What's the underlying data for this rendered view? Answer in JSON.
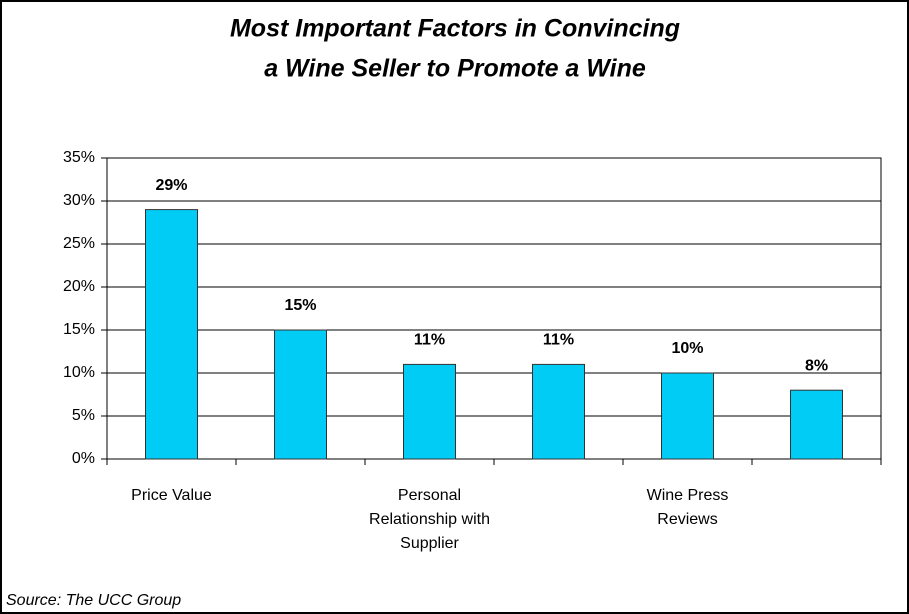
{
  "chart_data": {
    "type": "bar",
    "title": [
      "Most Important Factors in Convincing",
      "a Wine Seller to Promote a Wine"
    ],
    "categories": [
      "Price Value",
      null,
      "Personal Relationship with Supplier",
      null,
      "Wine Press Reviews",
      null
    ],
    "values": [
      29,
      15,
      11,
      11,
      10,
      8
    ],
    "value_labels": [
      "29%",
      "15%",
      "11%",
      "11%",
      "10%",
      "8%"
    ],
    "color": "#00ccf5",
    "ylim": [
      0,
      35
    ],
    "yticks": [
      {
        "value": 0,
        "label": "0%"
      },
      {
        "value": 5,
        "label": "5%"
      },
      {
        "value": 10,
        "label": "10%"
      },
      {
        "value": 15,
        "label": "15%"
      },
      {
        "value": 20,
        "label": "20%"
      },
      {
        "value": 25,
        "label": "25%"
      },
      {
        "value": 30,
        "label": "30%"
      },
      {
        "value": 35,
        "label": "35%"
      }
    ],
    "grid": true,
    "source": "Source: The UCC Group"
  }
}
